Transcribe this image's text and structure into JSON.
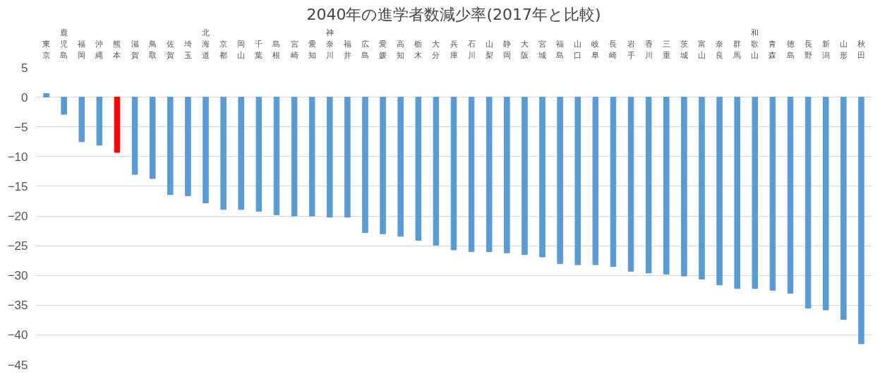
{
  "chart_data": {
    "type": "bar",
    "title": "2040年の進学者数減少率(2017年と比較)",
    "categories": [
      "東京",
      "鹿児島",
      "福岡",
      "沖縄",
      "熊本",
      "滋賀",
      "鳥取",
      "佐賀",
      "埼玉",
      "北海道",
      "京都",
      "岡山",
      "千葉",
      "島根",
      "宮崎",
      "愛知",
      "神奈川",
      "福井",
      "広島",
      "愛媛",
      "高知",
      "栃木",
      "大分",
      "兵庫",
      "石川",
      "山梨",
      "静岡",
      "大阪",
      "宮城",
      "福島",
      "山口",
      "岐阜",
      "長崎",
      "岩手",
      "香川",
      "三重",
      "茨城",
      "富山",
      "奈良",
      "群馬",
      "和歌山",
      "青森",
      "徳島",
      "長野",
      "新潟",
      "山形",
      "秋田"
    ],
    "values": [
      0.6,
      -2.9,
      -7.5,
      -8.1,
      -9.3,
      -13.0,
      -13.7,
      -16.4,
      -16.6,
      -17.8,
      -18.9,
      -18.9,
      -19.2,
      -19.8,
      -20.0,
      -20.0,
      -20.2,
      -20.2,
      -22.8,
      -23.0,
      -23.4,
      -24.1,
      -24.9,
      -25.7,
      -26.0,
      -26.0,
      -26.2,
      -26.5,
      -26.9,
      -28.0,
      -28.2,
      -28.2,
      -28.5,
      -29.3,
      -29.6,
      -29.8,
      -30.1,
      -30.6,
      -31.6,
      -32.2,
      -32.2,
      -32.5,
      -33.0,
      -35.5,
      -35.8,
      -37.4,
      -41.5
    ],
    "colors": [
      "#5b9bd5",
      "#5b9bd5",
      "#5b9bd5",
      "#5b9bd5",
      "#ff0000",
      "#5b9bd5",
      "#5b9bd5",
      "#5b9bd5",
      "#5b9bd5",
      "#5b9bd5",
      "#5b9bd5",
      "#5b9bd5",
      "#5b9bd5",
      "#5b9bd5",
      "#5b9bd5",
      "#5b9bd5",
      "#5b9bd5",
      "#5b9bd5",
      "#5b9bd5",
      "#5b9bd5",
      "#5b9bd5",
      "#5b9bd5",
      "#5b9bd5",
      "#5b9bd5",
      "#5b9bd5",
      "#5b9bd5",
      "#5b9bd5",
      "#5b9bd5",
      "#5b9bd5",
      "#5b9bd5",
      "#5b9bd5",
      "#5b9bd5",
      "#5b9bd5",
      "#5b9bd5",
      "#5b9bd5",
      "#5b9bd5",
      "#5b9bd5",
      "#5b9bd5",
      "#5b9bd5",
      "#5b9bd5",
      "#5b9bd5",
      "#5b9bd5",
      "#5b9bd5",
      "#5b9bd5",
      "#5b9bd5",
      "#5b9bd5",
      "#5b9bd5"
    ],
    "ylim": [
      -45,
      5
    ],
    "yticks": [
      5,
      0,
      -5,
      -10,
      -15,
      -20,
      -25,
      -30,
      -35,
      -40,
      -45
    ],
    "grid": "y"
  }
}
